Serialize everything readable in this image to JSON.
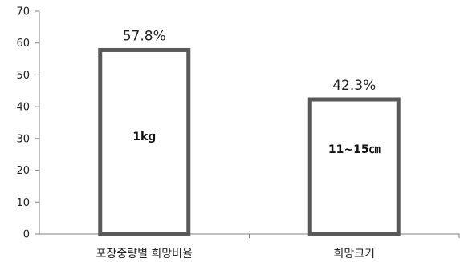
{
  "chart_data": {
    "type": "bar",
    "categories": [
      "포장중량별 희망비율",
      "희망크기"
    ],
    "values": [
      57.8,
      42.3
    ],
    "data_labels": [
      "57.8%",
      "42.3%"
    ],
    "inner_labels": [
      "1kg",
      "11~15㎝"
    ],
    "ylim": [
      0,
      70
    ],
    "yticks": [
      0,
      10,
      20,
      30,
      40,
      50,
      60,
      70
    ],
    "ytick_labels": [
      "0",
      "10",
      "20",
      "30",
      "40",
      "50",
      "60",
      "70"
    ],
    "grid": false,
    "legend": "none",
    "title": "",
    "xlabel": "",
    "ylabel": "",
    "colors": {
      "bar_fill": "#ffffff",
      "bar_border": "#595959",
      "axis": "#7f7f7f",
      "text": "#222222"
    }
  }
}
